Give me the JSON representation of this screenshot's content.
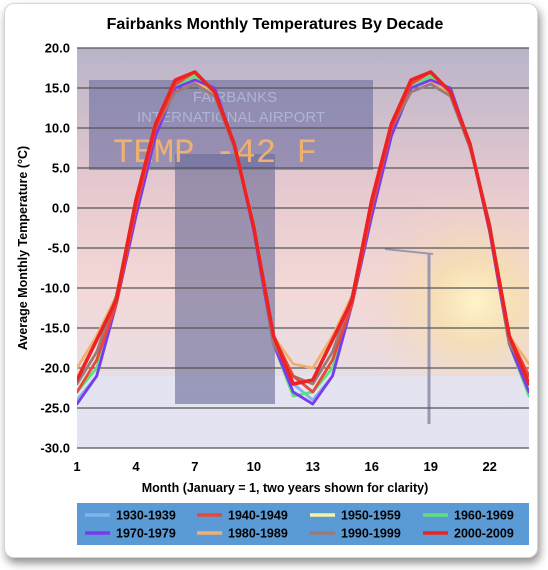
{
  "chart_data": {
    "type": "line",
    "title": "Fairbanks Monthly Temperatures By Decade",
    "xlabel": "Month (January = 1, two years shown for clarity)",
    "ylabel": "Average Monthly Temperature (°C)",
    "ylim": [
      -30,
      20
    ],
    "xlim": [
      1,
      24
    ],
    "yticks": [
      "20.0",
      "15.0",
      "10.0",
      "5.0",
      "0.0",
      "-5.0",
      "-10.0",
      "-15.0",
      "-20.0",
      "-25.0",
      "-30.0"
    ],
    "xticks": [
      "1",
      "4",
      "7",
      "10",
      "13",
      "16",
      "19",
      "22"
    ],
    "grid": "horizontal",
    "legend_position": "bottom",
    "background_photo_sign": [
      "FAIRBANKS",
      "INTERNATIONAL AIRPORT",
      "TEMP -42 F"
    ],
    "x": [
      1,
      2,
      3,
      4,
      5,
      6,
      7,
      8,
      9,
      10,
      11,
      12,
      13,
      14,
      15,
      16,
      17,
      18,
      19,
      20,
      21,
      22,
      23,
      24
    ],
    "series": [
      {
        "name": "1930-1939",
        "color": "#82b4ec",
        "values": [
          -24,
          -21,
          -12,
          -1,
          9,
          15,
          16,
          14,
          8,
          -2,
          -16,
          -22,
          -24,
          -21,
          -12,
          -1,
          9,
          15,
          16,
          14,
          8,
          -2,
          -16,
          -22
        ]
      },
      {
        "name": "1940-1949",
        "color": "#e8483a",
        "values": [
          -23,
          -19,
          -12,
          0,
          10,
          15.5,
          17,
          14.5,
          8,
          -2.5,
          -16,
          -21,
          -23,
          -19,
          -12,
          0,
          10,
          15.5,
          17,
          14.5,
          8,
          -2.5,
          -16,
          -21
        ]
      },
      {
        "name": "1950-1959",
        "color": "#f6f2a0",
        "values": [
          -22,
          -18,
          -11,
          0,
          9,
          15,
          16,
          14,
          8,
          -3,
          -16,
          -21,
          -22,
          -18,
          -11,
          0,
          9,
          15,
          16,
          14,
          8,
          -3,
          -16,
          -21
        ]
      },
      {
        "name": "1960-1969",
        "color": "#5fe07a",
        "values": [
          -23,
          -20,
          -12,
          -1,
          9,
          15,
          16.5,
          14.5,
          8,
          -3,
          -17,
          -23.5,
          -23,
          -20,
          -12,
          -1,
          9,
          15,
          16.5,
          14.5,
          8,
          -3,
          -17,
          -23.5
        ]
      },
      {
        "name": "1970-1979",
        "color": "#7a3bf0",
        "values": [
          -24.5,
          -21,
          -12,
          -1,
          9,
          15,
          16,
          15,
          8,
          -3,
          -17,
          -23,
          -24.5,
          -21,
          -12,
          -1,
          9,
          15,
          16,
          15,
          8,
          -3,
          -17,
          -23
        ]
      },
      {
        "name": "1980-1989",
        "color": "#f2b070",
        "values": [
          -20,
          -16,
          -11,
          0,
          10,
          15,
          16,
          14,
          8,
          -2,
          -16,
          -19.5,
          -20,
          -16,
          -11,
          0,
          10,
          15,
          16,
          14,
          8,
          -2,
          -16,
          -19.5
        ]
      },
      {
        "name": "1990-1999",
        "color": "#9a7a7a",
        "values": [
          -22,
          -18,
          -11,
          1,
          10,
          14.5,
          15.5,
          14,
          7.5,
          -2,
          -17,
          -21,
          -22,
          -18,
          -11,
          1,
          10,
          14.5,
          15.5,
          14,
          7.5,
          -2,
          -17,
          -21
        ]
      },
      {
        "name": "2000-2009",
        "color": "#ee2222",
        "values": [
          -21.5,
          -16.5,
          -11.5,
          1,
          10.5,
          16,
          17,
          14.5,
          8,
          -2.5,
          -16,
          -22,
          -21.5,
          -16.5,
          -11.5,
          1,
          10.5,
          16,
          17,
          14.5,
          8,
          -2.5,
          -16,
          -22
        ]
      }
    ]
  }
}
